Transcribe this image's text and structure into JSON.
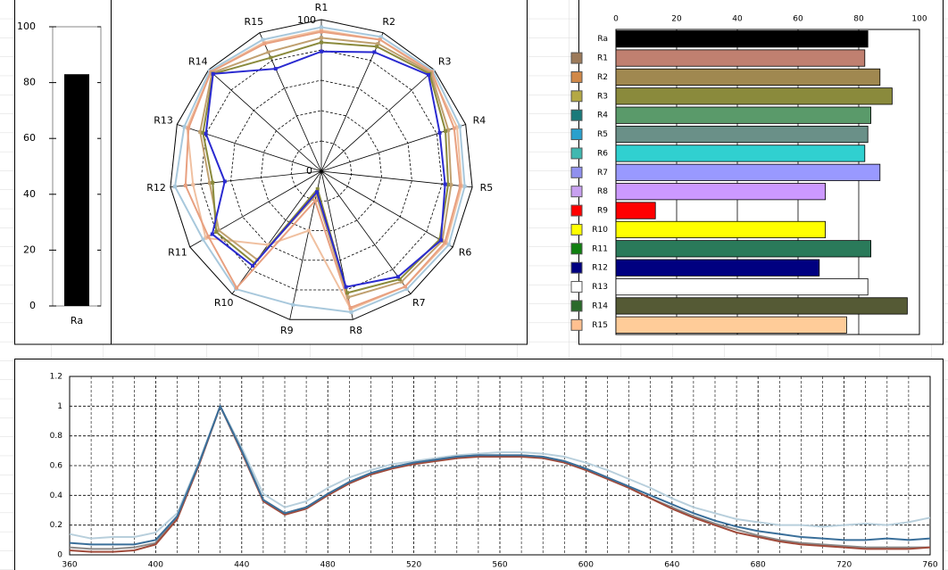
{
  "chart_data": [
    {
      "type": "bar",
      "categories": [
        "Ra"
      ],
      "values": [
        83
      ],
      "color": "#000000",
      "ylim": [
        0,
        100
      ],
      "yticks": [
        0,
        20,
        40,
        60,
        80,
        100
      ]
    },
    {
      "type": "radar",
      "categories": [
        "R1",
        "R2",
        "R3",
        "R4",
        "R5",
        "R6",
        "R7",
        "R8",
        "R9",
        "R10",
        "R11",
        "R12",
        "R13",
        "R14",
        "R15"
      ],
      "rlim": [
        0,
        100
      ],
      "rgrid": [
        20,
        40,
        60,
        80
      ],
      "series": [
        {
          "color": "#f0c0a0",
          "values": [
            93,
            95,
            97,
            94,
            93,
            95,
            94,
            93,
            40,
            60,
            88,
            85,
            93,
            98,
            93
          ]
        },
        {
          "color": "#a8c8dc",
          "values": [
            95,
            97,
            99,
            96,
            95,
            97,
            96,
            95,
            90,
            96,
            90,
            97,
            95,
            99,
            95
          ]
        },
        {
          "color": "#e8a080",
          "values": [
            92,
            95,
            98,
            92,
            92,
            94,
            94,
            92,
            20,
            95,
            86,
            90,
            92,
            98,
            92
          ]
        },
        {
          "color": "#c0a070",
          "values": [
            88,
            92,
            97,
            88,
            86,
            92,
            90,
            85,
            16,
            72,
            78,
            74,
            84,
            97,
            86
          ]
        },
        {
          "color": "#8a8a3c",
          "values": [
            85,
            90,
            96,
            86,
            84,
            90,
            88,
            82,
            12,
            75,
            80,
            72,
            82,
            96,
            82
          ]
        },
        {
          "color": "#2a2ad0",
          "values": [
            79,
            86,
            95,
            82,
            82,
            91,
            86,
            78,
            14,
            77,
            83,
            64,
            80,
            96,
            74
          ]
        }
      ]
    },
    {
      "type": "barh",
      "categories": [
        "Ra",
        "R1",
        "R2",
        "R3",
        "R4",
        "R5",
        "R6",
        "R7",
        "R8",
        "R9",
        "R10",
        "R11",
        "R12",
        "R13",
        "R14",
        "R15"
      ],
      "values": [
        83,
        82,
        87,
        91,
        84,
        83,
        82,
        87,
        69,
        13,
        69,
        84,
        67,
        83,
        96,
        76
      ],
      "colors": [
        "#000000",
        "#c08070",
        "#a08850",
        "#8a8a3c",
        "#5a9a6a",
        "#6a9088",
        "#30d0d0",
        "#9999ff",
        "#cc99ff",
        "#ff0000",
        "#ffff00",
        "#2a7a5a",
        "#000080",
        "#ffffff",
        "#555a35",
        "#ffcc99"
      ],
      "legend_colors": [
        null,
        "#9c7a5a",
        "#d08848",
        "#b4a844",
        "#1a7a7a",
        "#2aa0cc",
        "#40b8b0",
        "#9090ee",
        "#c8a0f0",
        "#ff0000",
        "#ffff00",
        "#108010",
        "#000080",
        "#ffffff",
        "#2a6a2a",
        "#ffc090"
      ],
      "xlim": [
        0,
        100
      ],
      "xticks": [
        0,
        20,
        40,
        60,
        80,
        100
      ],
      "grid": true
    },
    {
      "type": "line",
      "x": [
        360,
        370,
        380,
        390,
        400,
        410,
        420,
        430,
        440,
        450,
        460,
        470,
        480,
        490,
        500,
        510,
        520,
        530,
        540,
        550,
        560,
        570,
        580,
        590,
        600,
        610,
        620,
        630,
        640,
        650,
        660,
        670,
        680,
        690,
        700,
        710,
        720,
        730,
        740,
        750,
        760
      ],
      "series": [
        {
          "color": "#b8cfdc",
          "values": [
            0.14,
            0.11,
            0.12,
            0.12,
            0.15,
            0.28,
            0.62,
            1.0,
            0.72,
            0.41,
            0.32,
            0.36,
            0.45,
            0.52,
            0.57,
            0.61,
            0.63,
            0.65,
            0.67,
            0.68,
            0.69,
            0.69,
            0.68,
            0.66,
            0.62,
            0.57,
            0.51,
            0.45,
            0.38,
            0.32,
            0.28,
            0.24,
            0.22,
            0.2,
            0.2,
            0.19,
            0.2,
            0.21,
            0.2,
            0.22,
            0.25
          ]
        },
        {
          "color": "#8a8a8a",
          "values": [
            0.05,
            0.04,
            0.04,
            0.05,
            0.08,
            0.25,
            0.6,
            1.0,
            0.7,
            0.37,
            0.28,
            0.32,
            0.41,
            0.49,
            0.55,
            0.59,
            0.62,
            0.64,
            0.66,
            0.67,
            0.67,
            0.67,
            0.66,
            0.63,
            0.58,
            0.52,
            0.45,
            0.38,
            0.32,
            0.26,
            0.21,
            0.17,
            0.13,
            0.1,
            0.08,
            0.07,
            0.06,
            0.05,
            0.05,
            0.05,
            0.05
          ]
        },
        {
          "color": "#a04a3a",
          "values": [
            0.03,
            0.02,
            0.02,
            0.03,
            0.07,
            0.24,
            0.6,
            1.0,
            0.69,
            0.36,
            0.27,
            0.31,
            0.4,
            0.48,
            0.54,
            0.58,
            0.61,
            0.63,
            0.65,
            0.66,
            0.66,
            0.66,
            0.65,
            0.62,
            0.57,
            0.51,
            0.45,
            0.38,
            0.31,
            0.25,
            0.2,
            0.15,
            0.12,
            0.09,
            0.07,
            0.06,
            0.05,
            0.04,
            0.04,
            0.04,
            0.05
          ]
        },
        {
          "color": "#3a6f9a",
          "values": [
            0.08,
            0.07,
            0.07,
            0.07,
            0.1,
            0.26,
            0.61,
            1.0,
            0.7,
            0.37,
            0.28,
            0.32,
            0.41,
            0.49,
            0.55,
            0.59,
            0.62,
            0.64,
            0.66,
            0.67,
            0.67,
            0.67,
            0.66,
            0.63,
            0.58,
            0.52,
            0.46,
            0.4,
            0.34,
            0.28,
            0.23,
            0.19,
            0.16,
            0.14,
            0.12,
            0.11,
            0.1,
            0.1,
            0.11,
            0.1,
            0.11
          ]
        }
      ],
      "xlim": [
        360,
        760
      ],
      "xticks": [
        360,
        400,
        440,
        480,
        520,
        560,
        600,
        640,
        680,
        720,
        760
      ],
      "ylim": [
        0,
        1.2
      ],
      "yticks": [
        0,
        0.2,
        0.4,
        0.6,
        0.8,
        1,
        1.2
      ],
      "grid": true,
      "minor_grid_per_tick": 4
    }
  ]
}
